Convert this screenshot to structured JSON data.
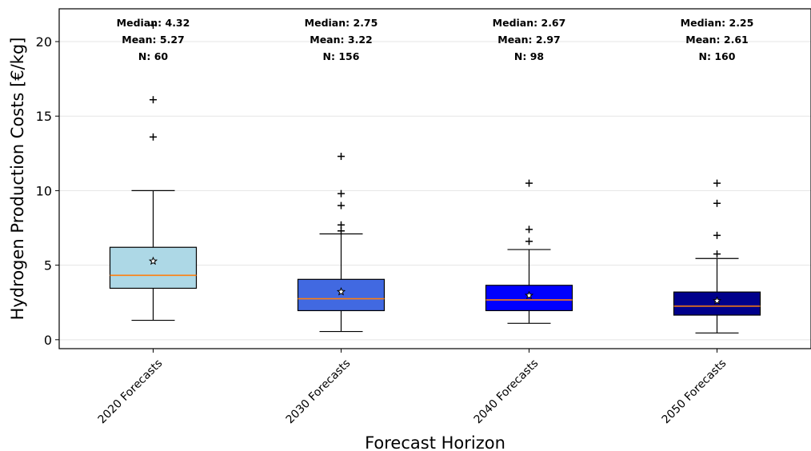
{
  "chart_data": {
    "type": "box",
    "xlabel": "Forecast Horizon",
    "ylabel": "Hydrogen Production Costs [€/kg]",
    "ylim": [
      -0.6,
      22.2
    ],
    "yticks": [
      0,
      5,
      10,
      15,
      20
    ],
    "ytick_labels": [
      "0",
      "5",
      "10",
      "15",
      "20"
    ],
    "grid": "horizontal",
    "categories": [
      "2020 Forecasts",
      "2030 Forecasts",
      "2040 Forecasts",
      "2050 Forecasts"
    ],
    "boxes": [
      {
        "category": "2020 Forecasts",
        "q1": 3.45,
        "median": 4.32,
        "q3": 6.2,
        "whisker_low": 1.3,
        "whisker_high": 10.0,
        "mean": 5.27,
        "n": 60,
        "outliers": [
          13.6,
          16.1,
          21.1
        ],
        "fill_color": "#add8e6",
        "labels": {
          "median": "Median: 4.32",
          "mean": "Mean: 5.27",
          "n": "N: 60"
        }
      },
      {
        "category": "2030 Forecasts",
        "q1": 1.95,
        "median": 2.75,
        "q3": 4.05,
        "whisker_low": 0.55,
        "whisker_high": 7.1,
        "mean": 3.22,
        "n": 156,
        "outliers": [
          7.3,
          7.7,
          9.0,
          9.8,
          12.3
        ],
        "fill_color": "#4169e1",
        "labels": {
          "median": "Median: 2.75",
          "mean": "Mean: 3.22",
          "n": "N: 156"
        }
      },
      {
        "category": "2040 Forecasts",
        "q1": 1.95,
        "median": 2.67,
        "q3": 3.65,
        "whisker_low": 1.1,
        "whisker_high": 6.05,
        "mean": 2.97,
        "n": 98,
        "outliers": [
          6.6,
          7.4,
          10.5
        ],
        "fill_color": "#0000ff",
        "labels": {
          "median": "Median: 2.67",
          "mean": "Mean: 2.97",
          "n": "N: 98"
        }
      },
      {
        "category": "2050 Forecasts",
        "q1": 1.65,
        "median": 2.25,
        "q3": 3.2,
        "whisker_low": 0.45,
        "whisker_high": 5.45,
        "mean": 2.61,
        "n": 160,
        "outliers": [
          5.75,
          7.0,
          9.15,
          10.5
        ],
        "fill_color": "#00008b",
        "labels": {
          "median": "Median: 2.25",
          "mean": "Mean: 2.61",
          "n": "N: 160"
        }
      }
    ],
    "colors": {
      "median_line": "#ff7f0e",
      "box_edge": "#000000",
      "grid": "#e5e5e5"
    }
  }
}
